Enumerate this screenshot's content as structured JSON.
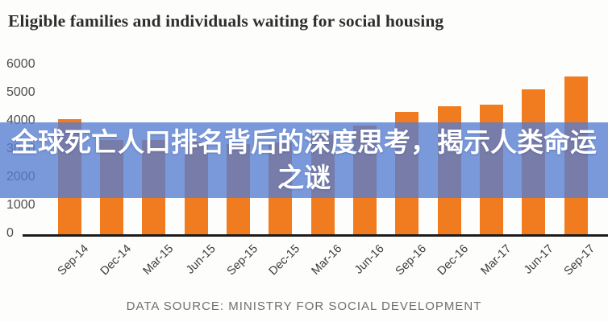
{
  "title": "Eligible families and individuals waiting for social housing",
  "overlay": {
    "line1": "全球死亡人口排名背后的深度思考，揭示人类命运",
    "line2": "之谜",
    "band_color": "rgba(84,124,208,0.78)",
    "text_color": "#ffffff"
  },
  "footer": {
    "source_label": "DATA SOURCE: MINISTRY FOR SOCIAL DEVELOPMENT"
  },
  "colors": {
    "bar": "#f17c20",
    "axis": "#1c1c1c",
    "tick_text": "#4f4f4f"
  },
  "chart_data": {
    "type": "bar",
    "title": "Eligible families and individuals waiting for social housing",
    "categories": [
      "Sep-14",
      "Dec-14",
      "Mar-15",
      "Jun-15",
      "Sep-15",
      "Dec-15",
      "Mar-16",
      "Jun-16",
      "Sep-16",
      "Dec-16",
      "Mar-17",
      "Jun-17",
      "Sep-17"
    ],
    "values": [
      4100,
      3350,
      3350,
      3300,
      3200,
      3250,
      3550,
      3850,
      4350,
      4550,
      4600,
      5150,
      5600
    ],
    "xlabel": "",
    "ylabel": "",
    "ylim": [
      0,
      6000
    ],
    "yticks": [
      0,
      1000,
      2000,
      3000,
      4000,
      5000,
      6000
    ],
    "grid": false,
    "legend": false,
    "bar_color": "#f17c20",
    "source": "DATA SOURCE: MINISTRY FOR SOCIAL DEVELOPMENT"
  }
}
